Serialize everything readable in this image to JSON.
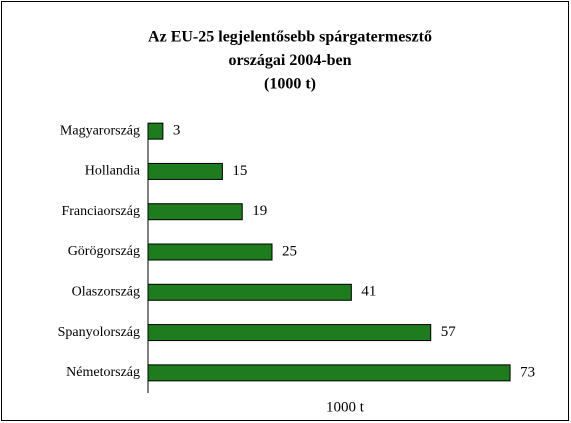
{
  "chart_data": {
    "type": "barh",
    "title": [
      "Az EU-25 legjelentősebb spárgatermesztő",
      "országai 2004-ben",
      "(1000 t)"
    ],
    "xlabel": "1000 t",
    "categories": [
      "Magyarország",
      "Hollandia",
      "Franciaország",
      "Görögország",
      "Olaszország",
      "Spanyolország",
      "Németország"
    ],
    "values": [
      3,
      15,
      19,
      25,
      41,
      57,
      73
    ],
    "color": "#1e7b1e",
    "xlim": [
      0,
      75
    ]
  }
}
